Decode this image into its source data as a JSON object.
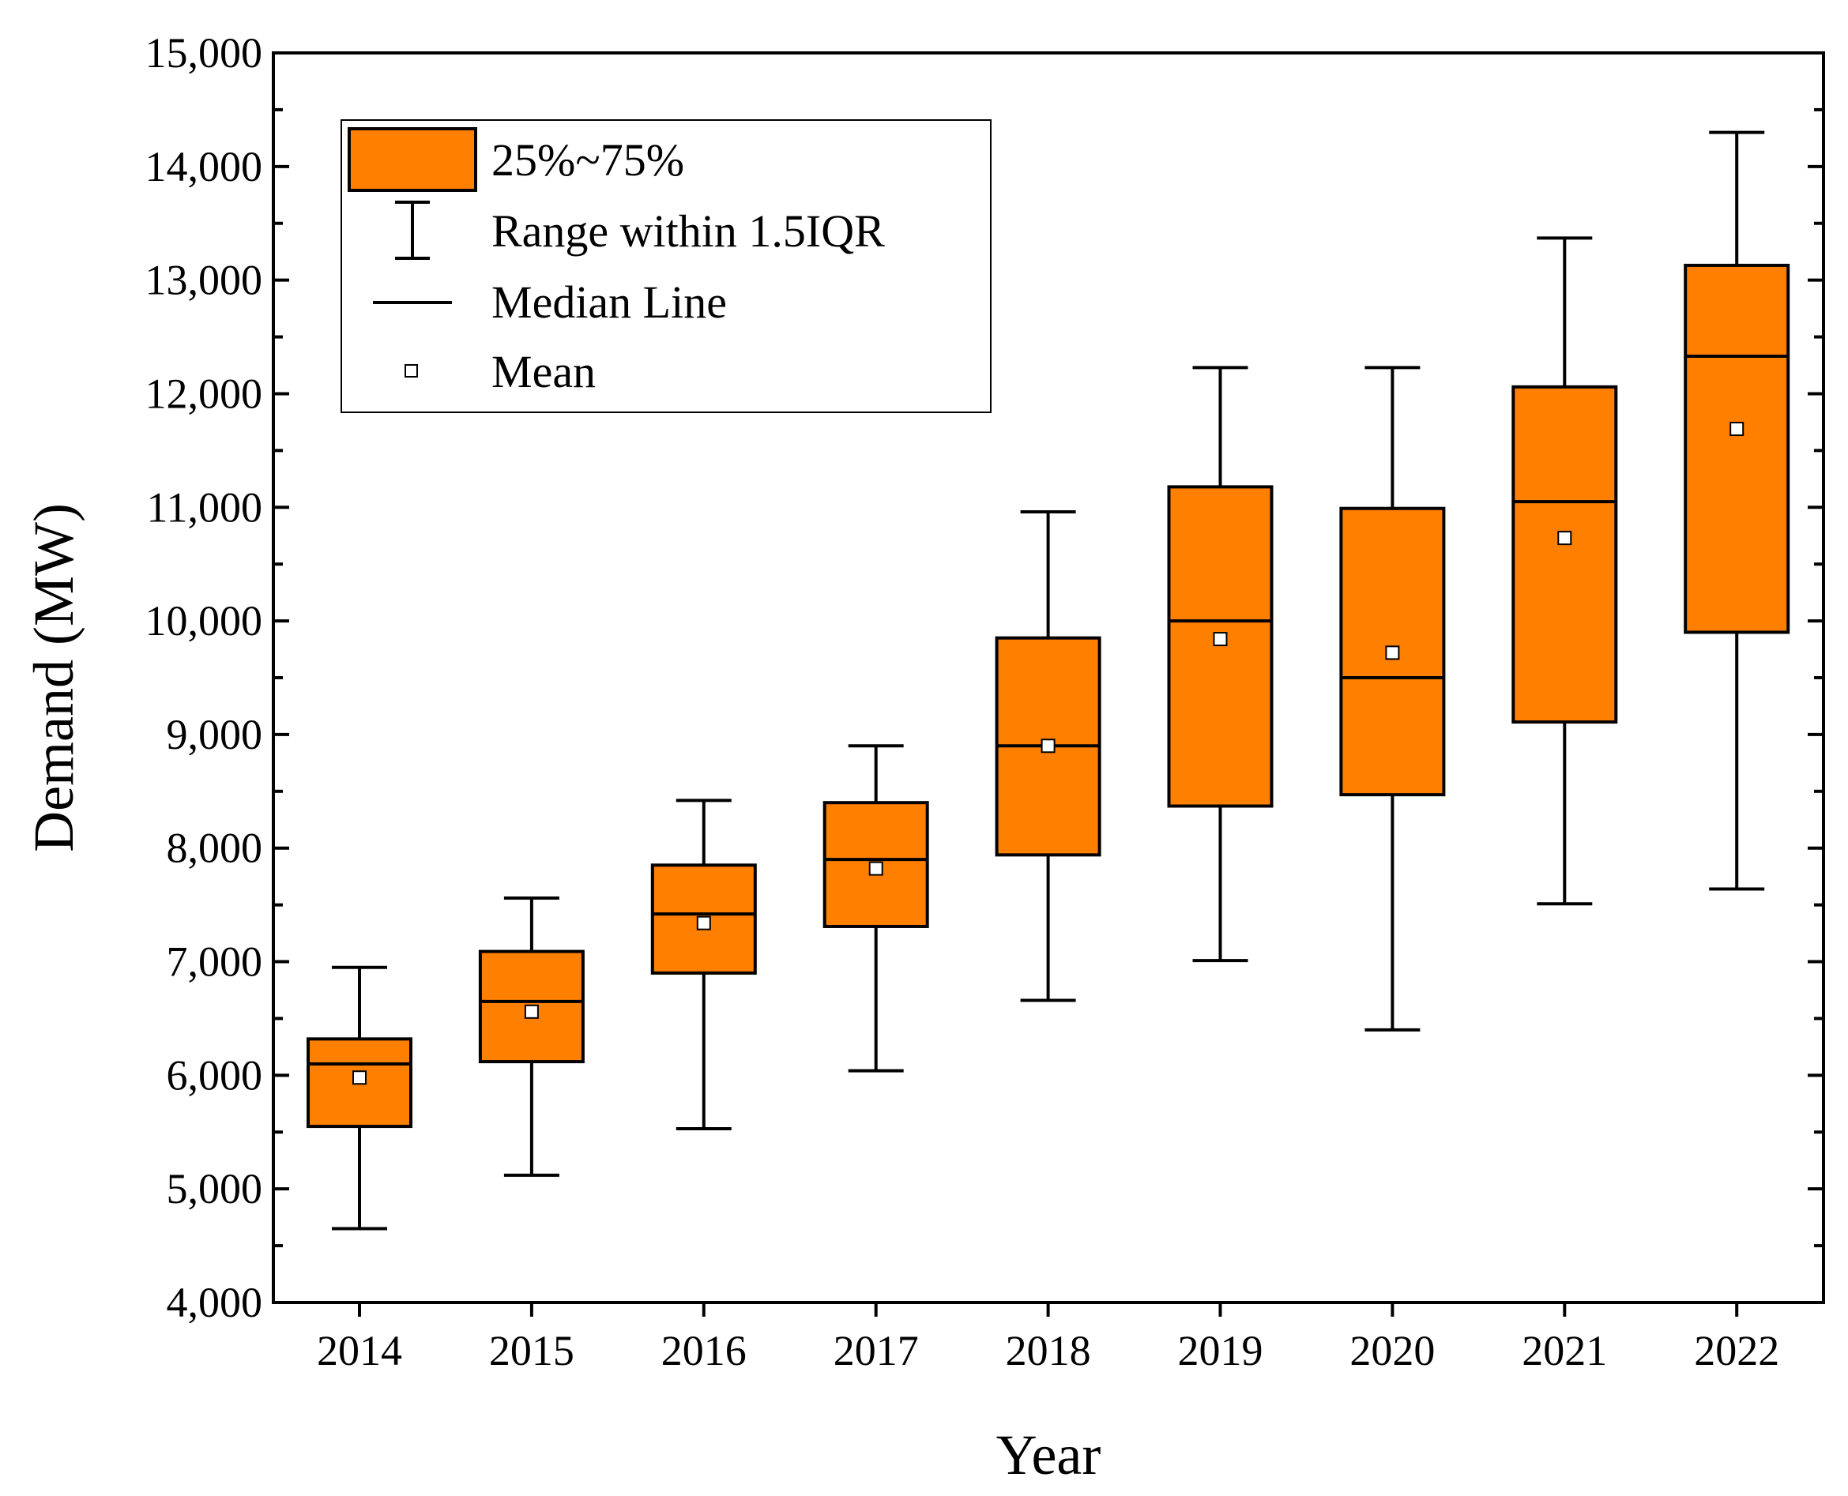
{
  "chart_data": {
    "type": "box",
    "xlabel": "Year",
    "ylabel": "Demand (MW)",
    "ylim": [
      4000,
      15000
    ],
    "yticks": [
      4000,
      5000,
      6000,
      7000,
      8000,
      9000,
      10000,
      11000,
      12000,
      13000,
      14000,
      15000
    ],
    "ytick_labels": [
      "4,000",
      "5,000",
      "6,000",
      "7,000",
      "8,000",
      "9,000",
      "10,000",
      "11,000",
      "12,000",
      "13,000",
      "14,000",
      "15,000"
    ],
    "categories": [
      "2014",
      "2015",
      "2016",
      "2017",
      "2018",
      "2019",
      "2020",
      "2021",
      "2022"
    ],
    "boxes": [
      {
        "whisker_low": 4650,
        "q1": 5550,
        "median": 6100,
        "q3": 6320,
        "whisker_high": 6950,
        "mean": 5980
      },
      {
        "whisker_low": 5120,
        "q1": 6120,
        "median": 6650,
        "q3": 7090,
        "whisker_high": 7560,
        "mean": 6560
      },
      {
        "whisker_low": 5530,
        "q1": 6900,
        "median": 7420,
        "q3": 7850,
        "whisker_high": 8420,
        "mean": 7340
      },
      {
        "whisker_low": 6040,
        "q1": 7310,
        "median": 7900,
        "q3": 8400,
        "whisker_high": 8900,
        "mean": 7820
      },
      {
        "whisker_low": 6660,
        "q1": 7940,
        "median": 8900,
        "q3": 9850,
        "whisker_high": 10960,
        "mean": 8900
      },
      {
        "whisker_low": 7010,
        "q1": 8370,
        "median": 10000,
        "q3": 11180,
        "whisker_high": 12230,
        "mean": 9840
      },
      {
        "whisker_low": 6400,
        "q1": 8470,
        "median": 9500,
        "q3": 10990,
        "whisker_high": 12230,
        "mean": 9720
      },
      {
        "whisker_low": 7510,
        "q1": 9110,
        "median": 11050,
        "q3": 12060,
        "whisker_high": 13370,
        "mean": 10730
      },
      {
        "whisker_low": 7640,
        "q1": 9900,
        "median": 12330,
        "q3": 13130,
        "whisker_high": 14300,
        "mean": 11690
      }
    ],
    "legend": {
      "placement": "top-left",
      "items": [
        {
          "kind": "box",
          "label": "25%~75%"
        },
        {
          "kind": "whisker",
          "label": "Range within 1.5IQR"
        },
        {
          "kind": "median",
          "label": "Median Line"
        },
        {
          "kind": "mean",
          "label": "Mean"
        }
      ]
    },
    "colors": {
      "box_fill": "#ff8000",
      "stroke": "#000000",
      "mean_fill": "#ffffff"
    },
    "grid": false
  }
}
